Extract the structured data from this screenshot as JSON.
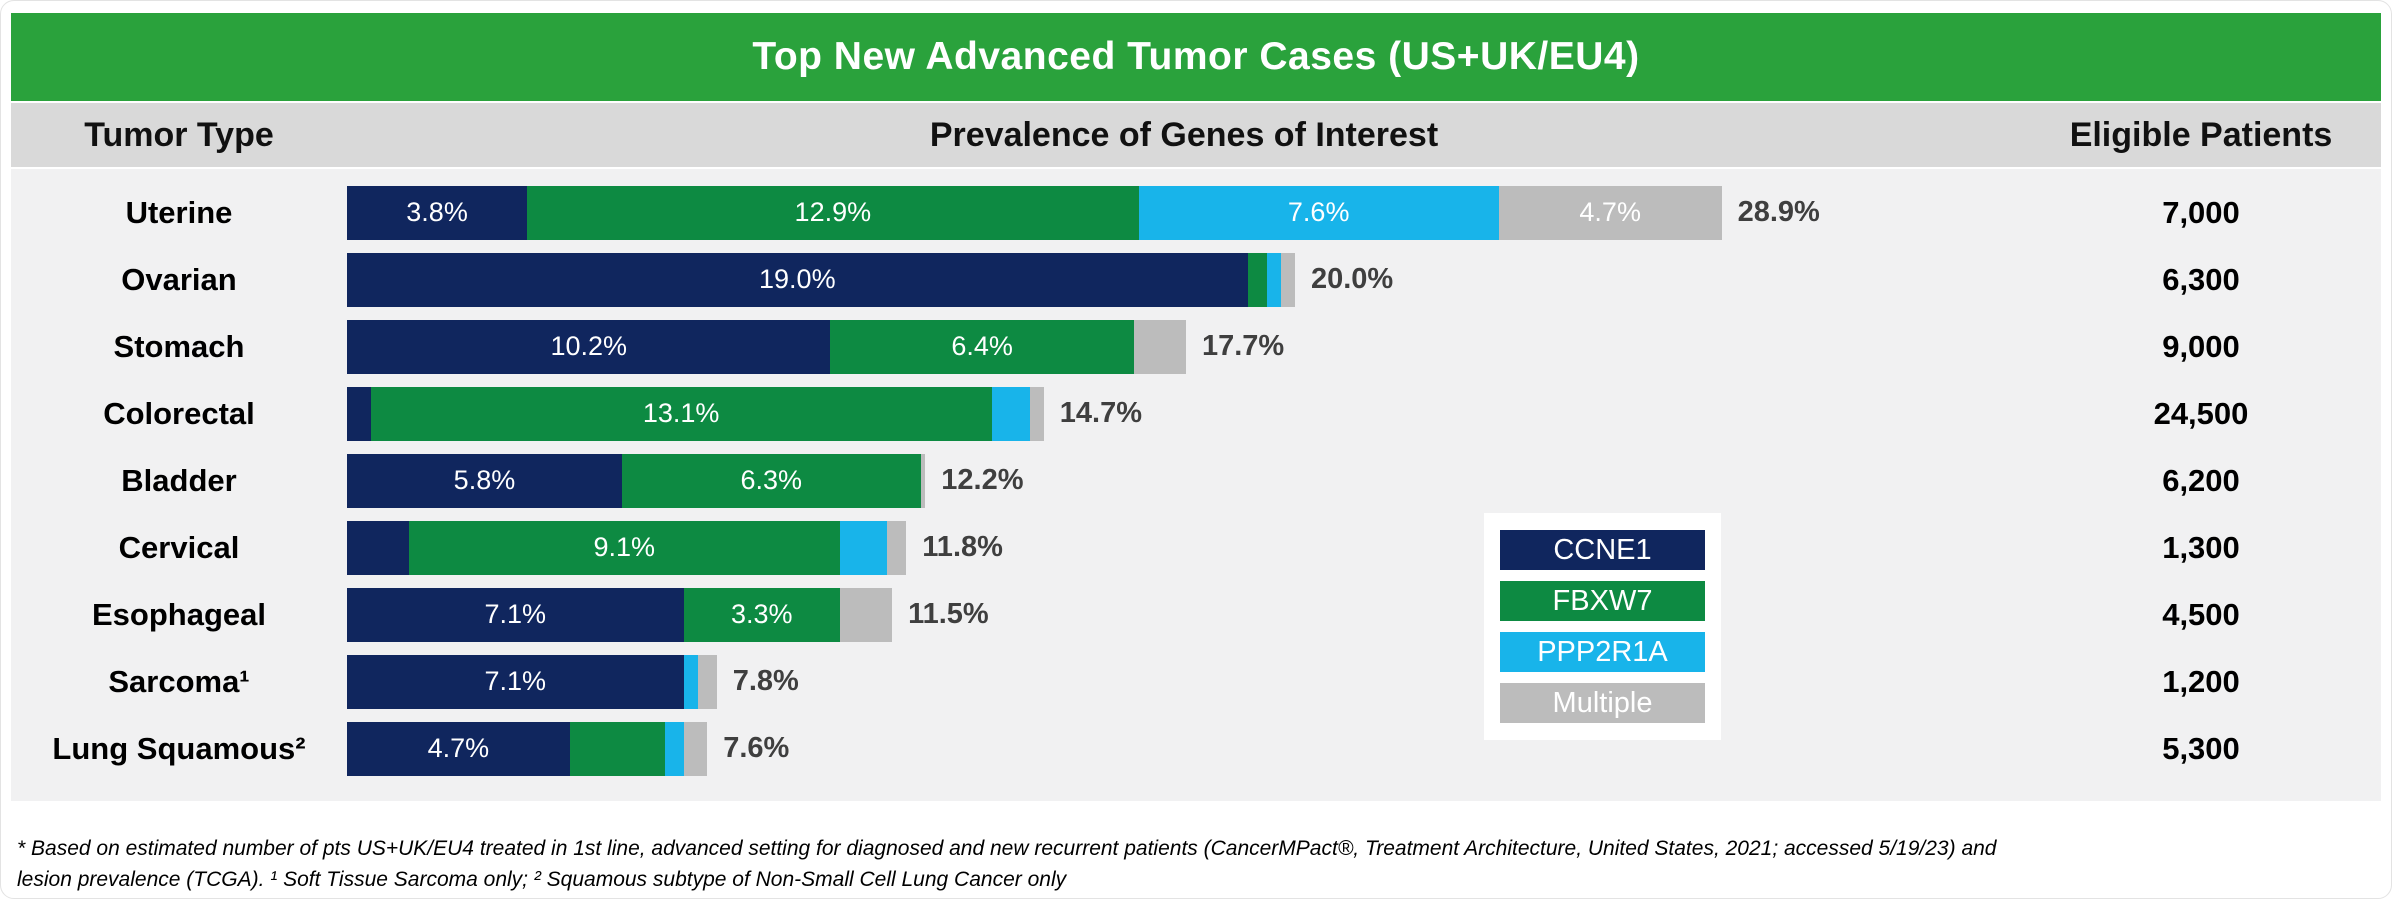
{
  "title": "Top New Advanced Tumor Cases (US+UK/EU4)",
  "columns": {
    "tumor_type": "Tumor Type",
    "prevalence": "Prevalence of Genes of Interest",
    "patients": "Eligible Patients"
  },
  "colors": {
    "CCNE1": "#10265e",
    "FBXW7": "#0d8a42",
    "PPP2R1A": "#18b4ea",
    "Multiple": "#bcbcbc",
    "header_green": "#2aa23c",
    "header_band": "#d9d9d9",
    "body_bg": "#f1f1f2",
    "total_text": "#3f3f3f"
  },
  "legend": [
    {
      "gene": "CCNE1"
    },
    {
      "gene": "FBXW7"
    },
    {
      "gene": "PPP2R1A"
    },
    {
      "gene": "Multiple"
    }
  ],
  "chart_data": {
    "type": "bar",
    "orientation": "horizontal",
    "stacked": true,
    "title": "Top New Advanced Tumor Cases (US+UK/EU4)",
    "xlabel": "Prevalence of Genes of Interest (%)",
    "x_range_percent": [
      0,
      29
    ],
    "grid": false,
    "legend_position": "center-right",
    "series_names": [
      "CCNE1",
      "FBXW7",
      "PPP2R1A",
      "Multiple"
    ],
    "rows": [
      {
        "tumor": "Uterine",
        "patients": "7,000",
        "total_label": "28.9%",
        "total": 28.9,
        "segments": [
          {
            "gene": "CCNE1",
            "value": 3.8,
            "label": "3.8%"
          },
          {
            "gene": "FBXW7",
            "value": 12.9,
            "label": "12.9%"
          },
          {
            "gene": "PPP2R1A",
            "value": 7.6,
            "label": "7.6%"
          },
          {
            "gene": "Multiple",
            "value": 4.7,
            "label": "4.7%"
          }
        ]
      },
      {
        "tumor": "Ovarian",
        "patients": "6,300",
        "total_label": "20.0%",
        "total": 20.0,
        "segments": [
          {
            "gene": "CCNE1",
            "value": 19.0,
            "label": "19.0%"
          },
          {
            "gene": "FBXW7",
            "value": 0.4,
            "label": ""
          },
          {
            "gene": "PPP2R1A",
            "value": 0.3,
            "label": ""
          },
          {
            "gene": "Multiple",
            "value": 0.3,
            "label": ""
          }
        ]
      },
      {
        "tumor": "Stomach",
        "patients": "9,000",
        "total_label": "17.7%",
        "total": 17.7,
        "segments": [
          {
            "gene": "CCNE1",
            "value": 10.2,
            "label": "10.2%"
          },
          {
            "gene": "FBXW7",
            "value": 6.4,
            "label": "6.4%"
          },
          {
            "gene": "PPP2R1A",
            "value": 0,
            "label": ""
          },
          {
            "gene": "Multiple",
            "value": 1.1,
            "label": ""
          }
        ]
      },
      {
        "tumor": "Colorectal",
        "patients": "24,500",
        "total_label": "14.7%",
        "total": 14.7,
        "segments": [
          {
            "gene": "CCNE1",
            "value": 0.5,
            "label": ""
          },
          {
            "gene": "FBXW7",
            "value": 13.1,
            "label": "13.1%"
          },
          {
            "gene": "PPP2R1A",
            "value": 0.8,
            "label": ""
          },
          {
            "gene": "Multiple",
            "value": 0.3,
            "label": ""
          }
        ]
      },
      {
        "tumor": "Bladder",
        "patients": "6,200",
        "total_label": "12.2%",
        "total": 12.2,
        "segments": [
          {
            "gene": "CCNE1",
            "value": 5.8,
            "label": "5.8%"
          },
          {
            "gene": "FBXW7",
            "value": 6.3,
            "label": "6.3%"
          },
          {
            "gene": "PPP2R1A",
            "value": 0,
            "label": ""
          },
          {
            "gene": "Multiple",
            "value": 0.1,
            "label": ""
          }
        ]
      },
      {
        "tumor": "Cervical",
        "patients": "1,300",
        "total_label": "11.8%",
        "total": 11.8,
        "segments": [
          {
            "gene": "CCNE1",
            "value": 1.3,
            "label": ""
          },
          {
            "gene": "FBXW7",
            "value": 9.1,
            "label": "9.1%"
          },
          {
            "gene": "PPP2R1A",
            "value": 1.0,
            "label": ""
          },
          {
            "gene": "Multiple",
            "value": 0.4,
            "label": ""
          }
        ]
      },
      {
        "tumor": "Esophageal",
        "patients": "4,500",
        "total_label": "11.5%",
        "total": 11.5,
        "segments": [
          {
            "gene": "CCNE1",
            "value": 7.1,
            "label": "7.1%"
          },
          {
            "gene": "FBXW7",
            "value": 3.3,
            "label": "3.3%"
          },
          {
            "gene": "PPP2R1A",
            "value": 0,
            "label": ""
          },
          {
            "gene": "Multiple",
            "value": 1.1,
            "label": ""
          }
        ]
      },
      {
        "tumor": "Sarcoma¹",
        "patients": "1,200",
        "total_label": "7.8%",
        "total": 7.8,
        "segments": [
          {
            "gene": "CCNE1",
            "value": 7.1,
            "label": "7.1%"
          },
          {
            "gene": "FBXW7",
            "value": 0,
            "label": ""
          },
          {
            "gene": "PPP2R1A",
            "value": 0.3,
            "label": ""
          },
          {
            "gene": "Multiple",
            "value": 0.4,
            "label": ""
          }
        ]
      },
      {
        "tumor": "Lung Squamous²",
        "patients": "5,300",
        "total_label": "7.6%",
        "total": 7.6,
        "segments": [
          {
            "gene": "CCNE1",
            "value": 4.7,
            "label": "4.7%"
          },
          {
            "gene": "FBXW7",
            "value": 2.0,
            "label": ""
          },
          {
            "gene": "PPP2R1A",
            "value": 0.4,
            "label": ""
          },
          {
            "gene": "Multiple",
            "value": 0.5,
            "label": ""
          }
        ]
      }
    ]
  },
  "footnote": {
    "line1": "* Based on estimated number of pts US+UK/EU4 treated in 1st line, advanced setting for diagnosed and new recurrent patients (CancerMPact®, Treatment Architecture, United States, 2021; accessed 5/19/23) and",
    "line2": "lesion prevalence (TCGA). ¹ Soft Tissue Sarcoma only; ² Squamous subtype of Non-Small Cell Lung Cancer only"
  }
}
